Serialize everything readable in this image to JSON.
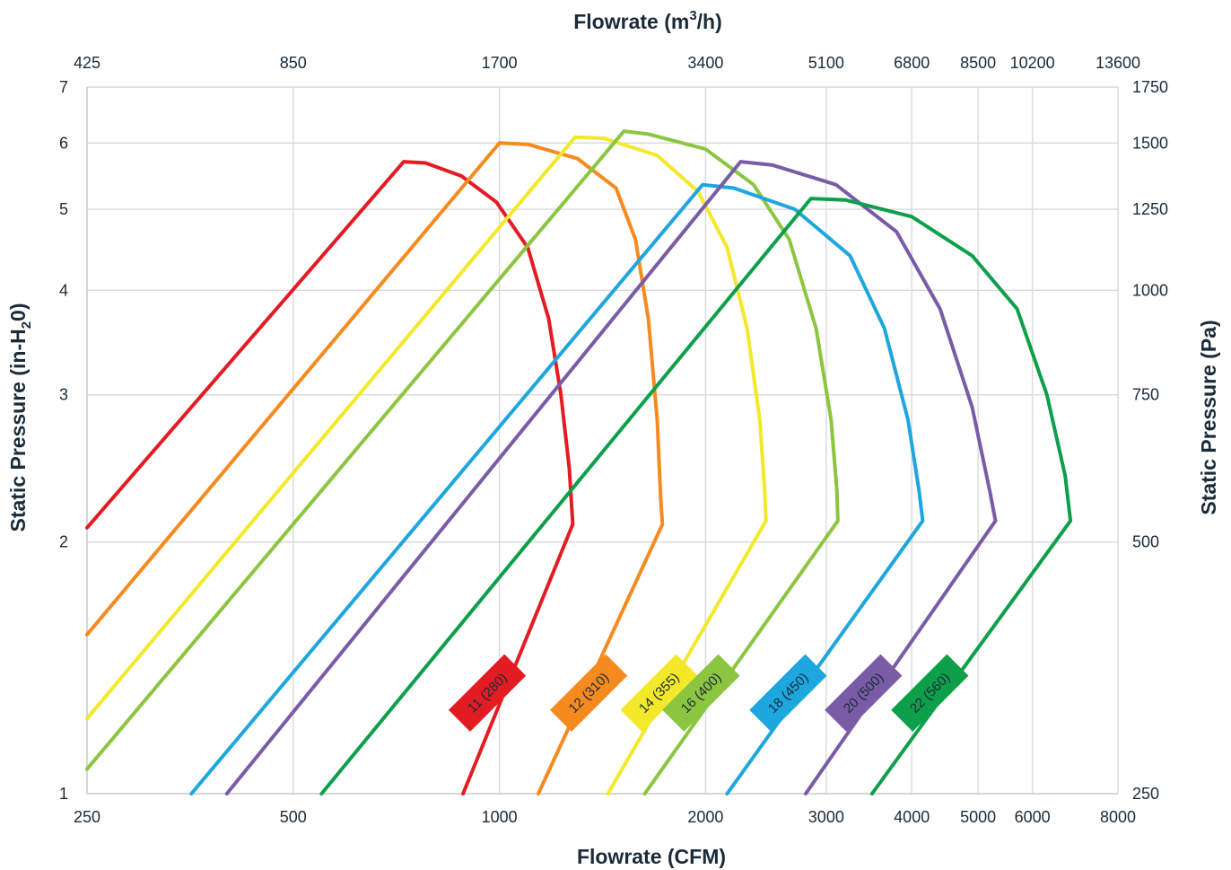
{
  "chart_data": {
    "type": "line",
    "top_title": "Flowrate (m",
    "top_title_sup": "3",
    "top_title_end": "/h)",
    "bottom_title": "Flowrate (CFM)",
    "left_title": "Static Pressure (in-H",
    "left_title_sub": "2",
    "left_title_end": "0)",
    "right_title": "Static Pressure (Pa)",
    "x_scale": "log",
    "y_scale": "log",
    "xlim": [
      250,
      8000
    ],
    "ylim": [
      1,
      7
    ],
    "grid": true,
    "x_ticks": [
      250,
      500,
      1000,
      2000,
      3000,
      4000,
      5000,
      6000,
      8000
    ],
    "x_tick_labels": [
      "250",
      "500",
      "1000",
      "2000",
      "3000",
      "4000",
      "5000",
      "6000",
      "8000"
    ],
    "x_top_ticks": [
      250,
      500,
      1000,
      2000,
      3000,
      4000,
      5000,
      6000,
      8000
    ],
    "x_top_tick_labels": [
      "425",
      "850",
      "1700",
      "3400",
      "5100",
      "6800",
      "8500",
      "10200",
      "13600"
    ],
    "y_ticks": [
      1,
      2,
      3,
      4,
      5,
      6,
      7
    ],
    "y_tick_labels": [
      "1",
      "2",
      "3",
      "4",
      "5",
      "6",
      "7"
    ],
    "y_right_ticks": [
      1,
      2,
      3,
      4,
      5,
      6,
      7
    ],
    "y_right_tick_labels": [
      "250",
      "500",
      "750",
      "1000",
      "1250",
      "1500",
      "1750"
    ],
    "series": [
      {
        "name": "11 (280)",
        "color": "#e31b23",
        "tag": {
          "x": 960,
          "y": 1.32
        },
        "points": [
          [
            250,
            2.08
          ],
          [
            725,
            5.7
          ],
          [
            780,
            5.68
          ],
          [
            880,
            5.48
          ],
          [
            990,
            5.1
          ],
          [
            1100,
            4.5
          ],
          [
            1180,
            3.7
          ],
          [
            1230,
            3.0
          ],
          [
            1265,
            2.45
          ],
          [
            1280,
            2.1
          ],
          [
            885,
            1.0
          ]
        ]
      },
      {
        "name": "12 (310)",
        "color": "#f58a1f",
        "tag": {
          "x": 1350,
          "y": 1.32
        },
        "points": [
          [
            250,
            1.55
          ],
          [
            1000,
            6.0
          ],
          [
            1100,
            5.98
          ],
          [
            1300,
            5.75
          ],
          [
            1480,
            5.3
          ],
          [
            1580,
            4.6
          ],
          [
            1650,
            3.7
          ],
          [
            1700,
            2.8
          ],
          [
            1720,
            2.25
          ],
          [
            1730,
            2.1
          ],
          [
            1140,
            1.0
          ]
        ]
      },
      {
        "name": "14 (355)",
        "color": "#f4e82a",
        "tag": {
          "x": 1710,
          "y": 1.32
        },
        "points": [
          [
            250,
            1.23
          ],
          [
            1290,
            6.1
          ],
          [
            1420,
            6.08
          ],
          [
            1700,
            5.8
          ],
          [
            1950,
            5.25
          ],
          [
            2150,
            4.5
          ],
          [
            2300,
            3.6
          ],
          [
            2400,
            2.8
          ],
          [
            2440,
            2.3
          ],
          [
            2450,
            2.12
          ],
          [
            1440,
            1.0
          ]
        ]
      },
      {
        "name": "16 (400)",
        "color": "#8cc540",
        "tag": {
          "x": 1970,
          "y": 1.32
        },
        "points": [
          [
            250,
            1.07
          ],
          [
            1520,
            6.2
          ],
          [
            1650,
            6.15
          ],
          [
            2000,
            5.9
          ],
          [
            2350,
            5.35
          ],
          [
            2650,
            4.6
          ],
          [
            2900,
            3.6
          ],
          [
            3050,
            2.8
          ],
          [
            3110,
            2.3
          ],
          [
            3120,
            2.12
          ],
          [
            1630,
            1.0
          ]
        ]
      },
      {
        "name": "18 (450)",
        "color": "#1ea6de",
        "tag": {
          "x": 2640,
          "y": 1.32
        },
        "points": [
          [
            355,
            1.0
          ],
          [
            1980,
            5.35
          ],
          [
            2200,
            5.3
          ],
          [
            2700,
            5.0
          ],
          [
            3250,
            4.4
          ],
          [
            3650,
            3.6
          ],
          [
            3950,
            2.8
          ],
          [
            4100,
            2.3
          ],
          [
            4150,
            2.12
          ],
          [
            2150,
            1.0
          ]
        ]
      },
      {
        "name": "20 (500)",
        "color": "#7a5ba6",
        "tag": {
          "x": 3400,
          "y": 1.32
        },
        "points": [
          [
            400,
            1.0
          ],
          [
            2250,
            5.7
          ],
          [
            2500,
            5.65
          ],
          [
            3100,
            5.35
          ],
          [
            3800,
            4.7
          ],
          [
            4400,
            3.8
          ],
          [
            4900,
            2.9
          ],
          [
            5200,
            2.3
          ],
          [
            5300,
            2.12
          ],
          [
            2800,
            1.0
          ]
        ]
      },
      {
        "name": "22 (560)",
        "color": "#0d9f4a",
        "tag": {
          "x": 4250,
          "y": 1.32
        },
        "points": [
          [
            550,
            1.0
          ],
          [
            2850,
            5.15
          ],
          [
            3200,
            5.13
          ],
          [
            4000,
            4.9
          ],
          [
            4900,
            4.4
          ],
          [
            5700,
            3.8
          ],
          [
            6300,
            3.0
          ],
          [
            6700,
            2.4
          ],
          [
            6820,
            2.12
          ],
          [
            3500,
            1.0
          ]
        ]
      }
    ]
  }
}
